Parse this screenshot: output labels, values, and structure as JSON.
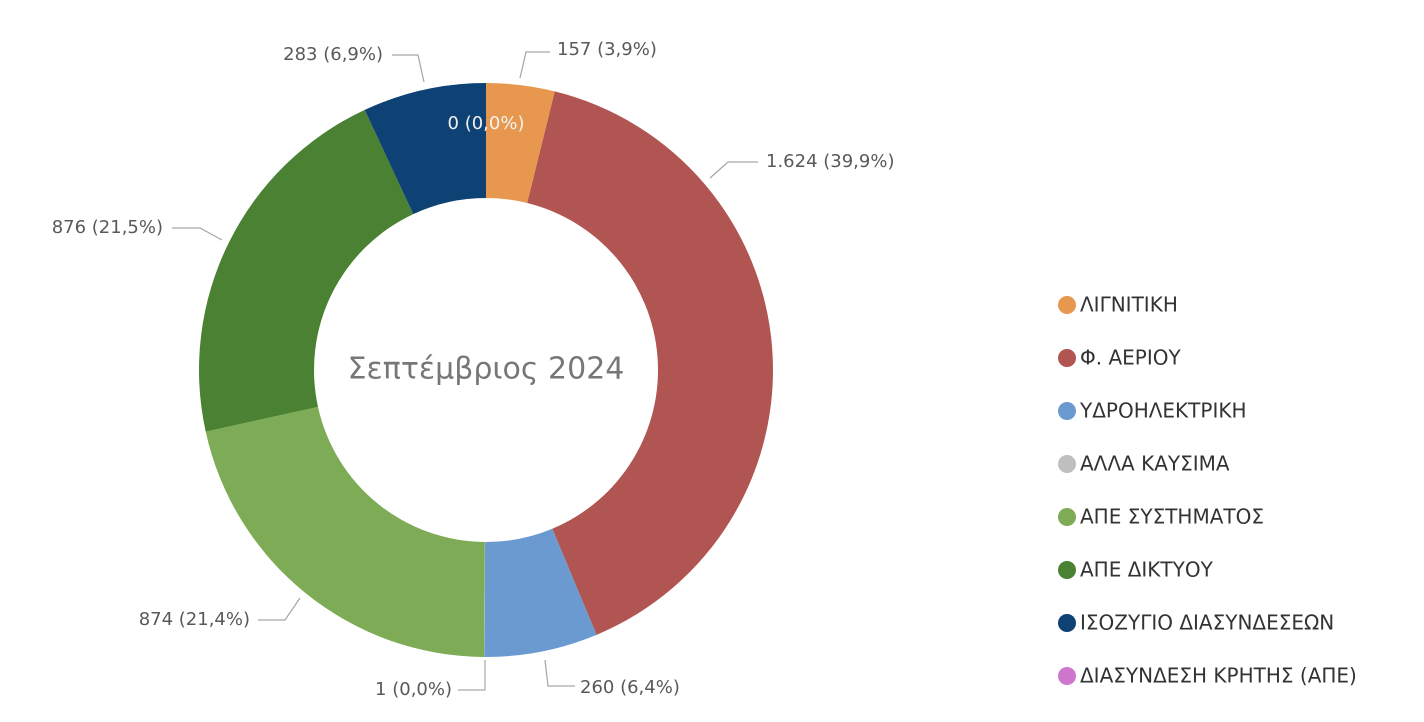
{
  "chart_data": {
    "type": "pie",
    "donut": true,
    "title": "Σεπτέμβριος 2024",
    "categories": [
      "ΛΙΓΝΙΤΙΚΗ",
      "Φ. ΑΕΡΙΟΥ",
      "ΥΔΡΟΗΛΕΚΤΡΙΚΗ",
      "ΑΛΛΑ ΚΑΥΣΙΜΑ",
      "ΑΠΕ ΣΥΣΤΗΜΑΤΟΣ",
      "ΑΠΕ ΔΙΚΤΥΟΥ",
      "ΙΣΟΖΥΓΙΟ ΔΙΑΣΥΝΔΕΣΕΩΝ",
      "ΔΙΑΣΥΝΔΕΣΗ ΚΡΗΤΗΣ (ΑΠΕ)"
    ],
    "values": [
      157,
      1624,
      260,
      1,
      874,
      876,
      283,
      0
    ],
    "value_labels": [
      "157 (3,9%)",
      "1.624 (39,9%)",
      "260 (6,4%)",
      "1 (0,0%)",
      "874 (21,4%)",
      "876 (21,5%)",
      "283 (6,9%)",
      "0 (0,0%)"
    ],
    "colors": [
      "#E8984E",
      "#B05551",
      "#6A9AD0",
      "#BFBFBF",
      "#7EAB55",
      "#4A8133",
      "#0E4174",
      "#CC77CC"
    ],
    "legend": "right"
  }
}
